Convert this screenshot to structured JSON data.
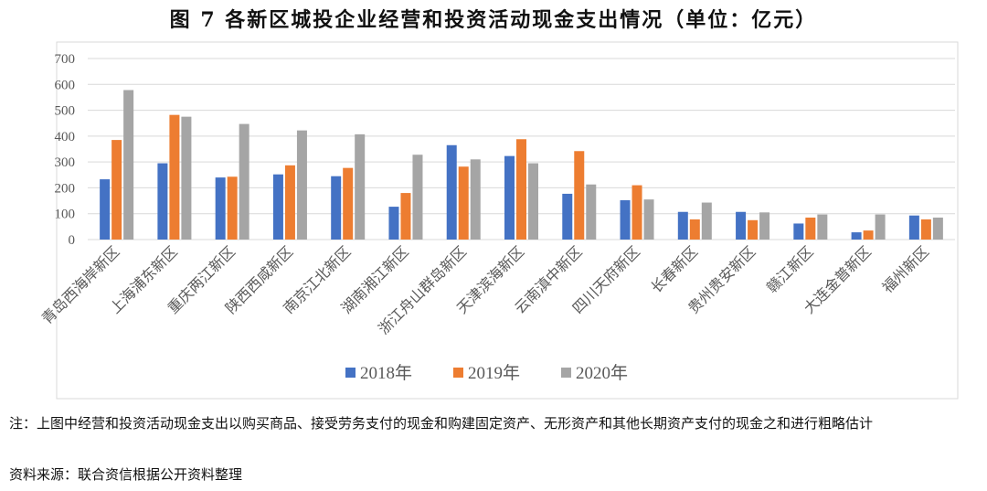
{
  "chart_data": {
    "type": "bar",
    "title": "图 7   各新区城投企业经营和投资活动现金支出情况（单位：亿元）",
    "categories": [
      "青岛西海岸新区",
      "上海浦东新区",
      "重庆两江新区",
      "陕西西咸新区",
      "南京江北新区",
      "湖南湘江新区",
      "浙江舟山群岛新区",
      "天津滨海新区",
      "云南滇中新区",
      "四川天府新区",
      "长春新区",
      "贵州贵安新区",
      "赣江新区",
      "大连金普新区",
      "福州新区"
    ],
    "series": [
      {
        "name": "2018年",
        "color": "#4472c4",
        "values": [
          233,
          295,
          240,
          252,
          245,
          127,
          365,
          323,
          177,
          152,
          107,
          107,
          62,
          28,
          93
        ]
      },
      {
        "name": "2019年",
        "color": "#ed7d31",
        "values": [
          385,
          482,
          243,
          287,
          277,
          180,
          282,
          388,
          342,
          210,
          78,
          75,
          85,
          35,
          78
        ]
      },
      {
        "name": "2020年",
        "color": "#a5a5a5",
        "values": [
          578,
          475,
          447,
          422,
          407,
          328,
          310,
          295,
          213,
          155,
          143,
          105,
          97,
          97,
          85
        ]
      }
    ],
    "ylim": [
      0,
      700
    ],
    "yticks": [
      0,
      100,
      200,
      300,
      400,
      500,
      600,
      700
    ],
    "grid": true,
    "legend": "bottom",
    "note": "注：上图中经营和投资活动现金支出以购买商品、接受劳务支付的现金和购建固定资产、无形资产和其他长期资产支付的现金之和进行粗略估计",
    "source": "资料来源：联合资信根据公开资料整理"
  }
}
